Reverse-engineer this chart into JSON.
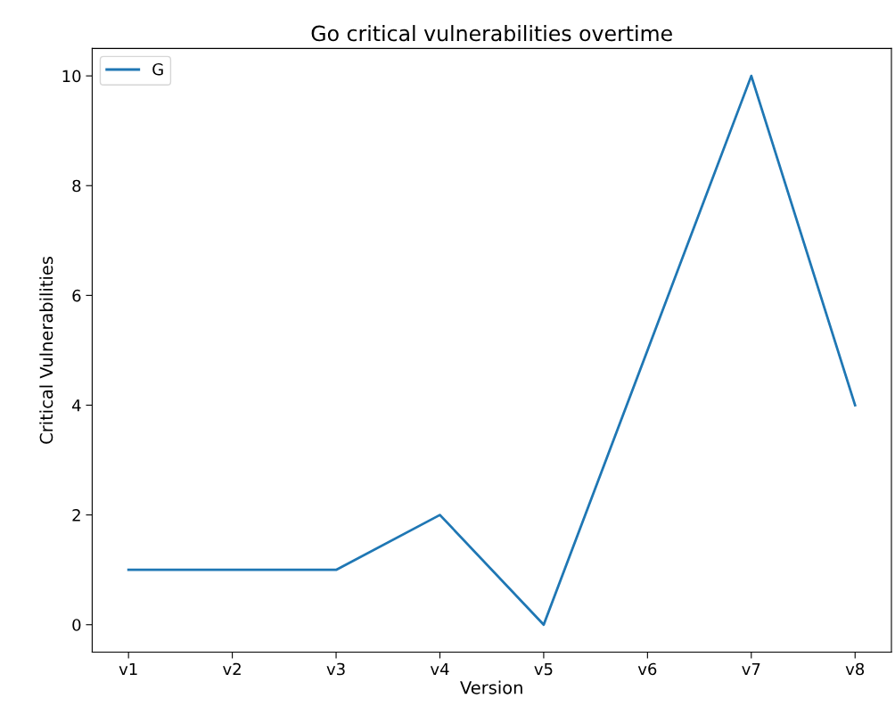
{
  "chart_data": {
    "type": "line",
    "title": "Go critical vulnerabilities overtime",
    "xlabel": "Version",
    "ylabel": "Critical Vulnerabilities",
    "categories": [
      "v1",
      "v2",
      "v3",
      "v4",
      "v5",
      "v6",
      "v7",
      "v8"
    ],
    "series": [
      {
        "name": "G",
        "color": "#1f77b4",
        "values": [
          1,
          1,
          1,
          2,
          0,
          5,
          10,
          4
        ]
      }
    ],
    "ylim": [
      -0.5,
      10.5
    ],
    "yticks": [
      0,
      2,
      4,
      6,
      8,
      10
    ],
    "grid": false,
    "legend": "top left",
    "marker": "none",
    "line_style": "solid"
  }
}
